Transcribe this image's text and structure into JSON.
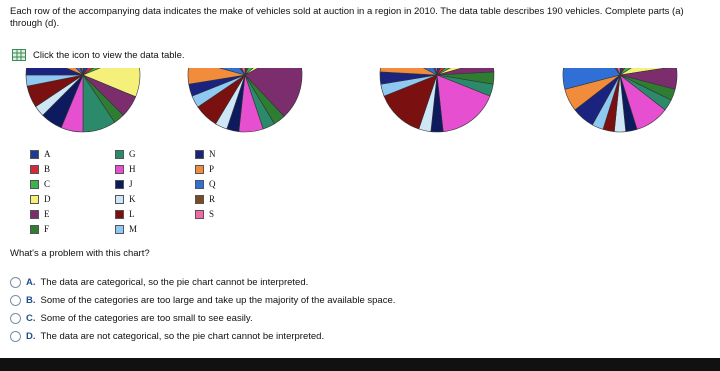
{
  "header": {
    "lines": [
      "Each row of the accompanying data indicates the make of vehicles sold at auction in a region in 2010. The data table describes 190 vehicles. Complete parts (a)",
      "through (d)."
    ]
  },
  "link": "Click the icon to view the data table.",
  "legend": {
    "columns": [
      [
        {
          "label": "A",
          "color": "#1f3a93"
        },
        {
          "label": "B",
          "color": "#d62839"
        },
        {
          "label": "C",
          "color": "#3cb44b"
        },
        {
          "label": "D",
          "color": "#f5f07a"
        },
        {
          "label": "E",
          "color": "#7b2d6e"
        },
        {
          "label": "F",
          "color": "#2e7d32"
        }
      ],
      [
        {
          "label": "G",
          "color": "#2a8a6a"
        },
        {
          "label": "H",
          "color": "#e64fd0"
        },
        {
          "label": "J",
          "color": "#0d1b5e"
        },
        {
          "label": "K",
          "color": "#cfe6f7"
        },
        {
          "label": "L",
          "color": "#7a1010"
        },
        {
          "label": "M",
          "color": "#8fc8f0"
        }
      ],
      [
        {
          "label": "N",
          "color": "#1a237e"
        },
        {
          "label": "P",
          "color": "#f08c3c"
        },
        {
          "label": "Q",
          "color": "#2f6fd6"
        },
        {
          "label": "R",
          "color": "#7a4a22"
        },
        {
          "label": "S",
          "color": "#f26aa5"
        }
      ]
    ]
  },
  "question": "What's a problem with this chart?",
  "options": [
    {
      "letter": "A.",
      "text": "The data are categorical, so the pie chart cannot be interpreted."
    },
    {
      "letter": "B.",
      "text": "Some of the categories are too large and take up the majority of the available space."
    },
    {
      "letter": "C.",
      "text": "Some of the categories are too small to see easily."
    },
    {
      "letter": "D.",
      "text": "The data are not categorical, so the pie chart cannot be interpreted."
    }
  ]
}
